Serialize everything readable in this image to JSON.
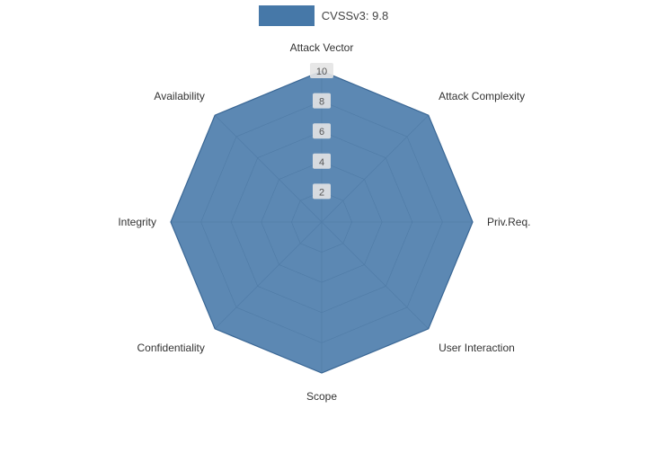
{
  "legend": {
    "label": "CVSSv3: 9.8"
  },
  "chart_data": {
    "type": "radar",
    "title": "",
    "series_name": "CVSSv3: 9.8",
    "categories": [
      "Attack Vector",
      "Attack Complexity",
      "Priv.Req.",
      "User Interaction",
      "Scope",
      "Confidentiality",
      "Integrity",
      "Availability"
    ],
    "values": [
      10,
      10,
      10,
      10,
      10,
      10,
      10,
      10
    ],
    "max": 10,
    "ticks": [
      2,
      4,
      6,
      8,
      10
    ],
    "fill_color": "#4678a8",
    "fill_opacity": 0.88,
    "line_color": "#3a6795",
    "grid_color": "#999999",
    "label_color": "#333333",
    "tick_bg": "#e4e4e4"
  }
}
